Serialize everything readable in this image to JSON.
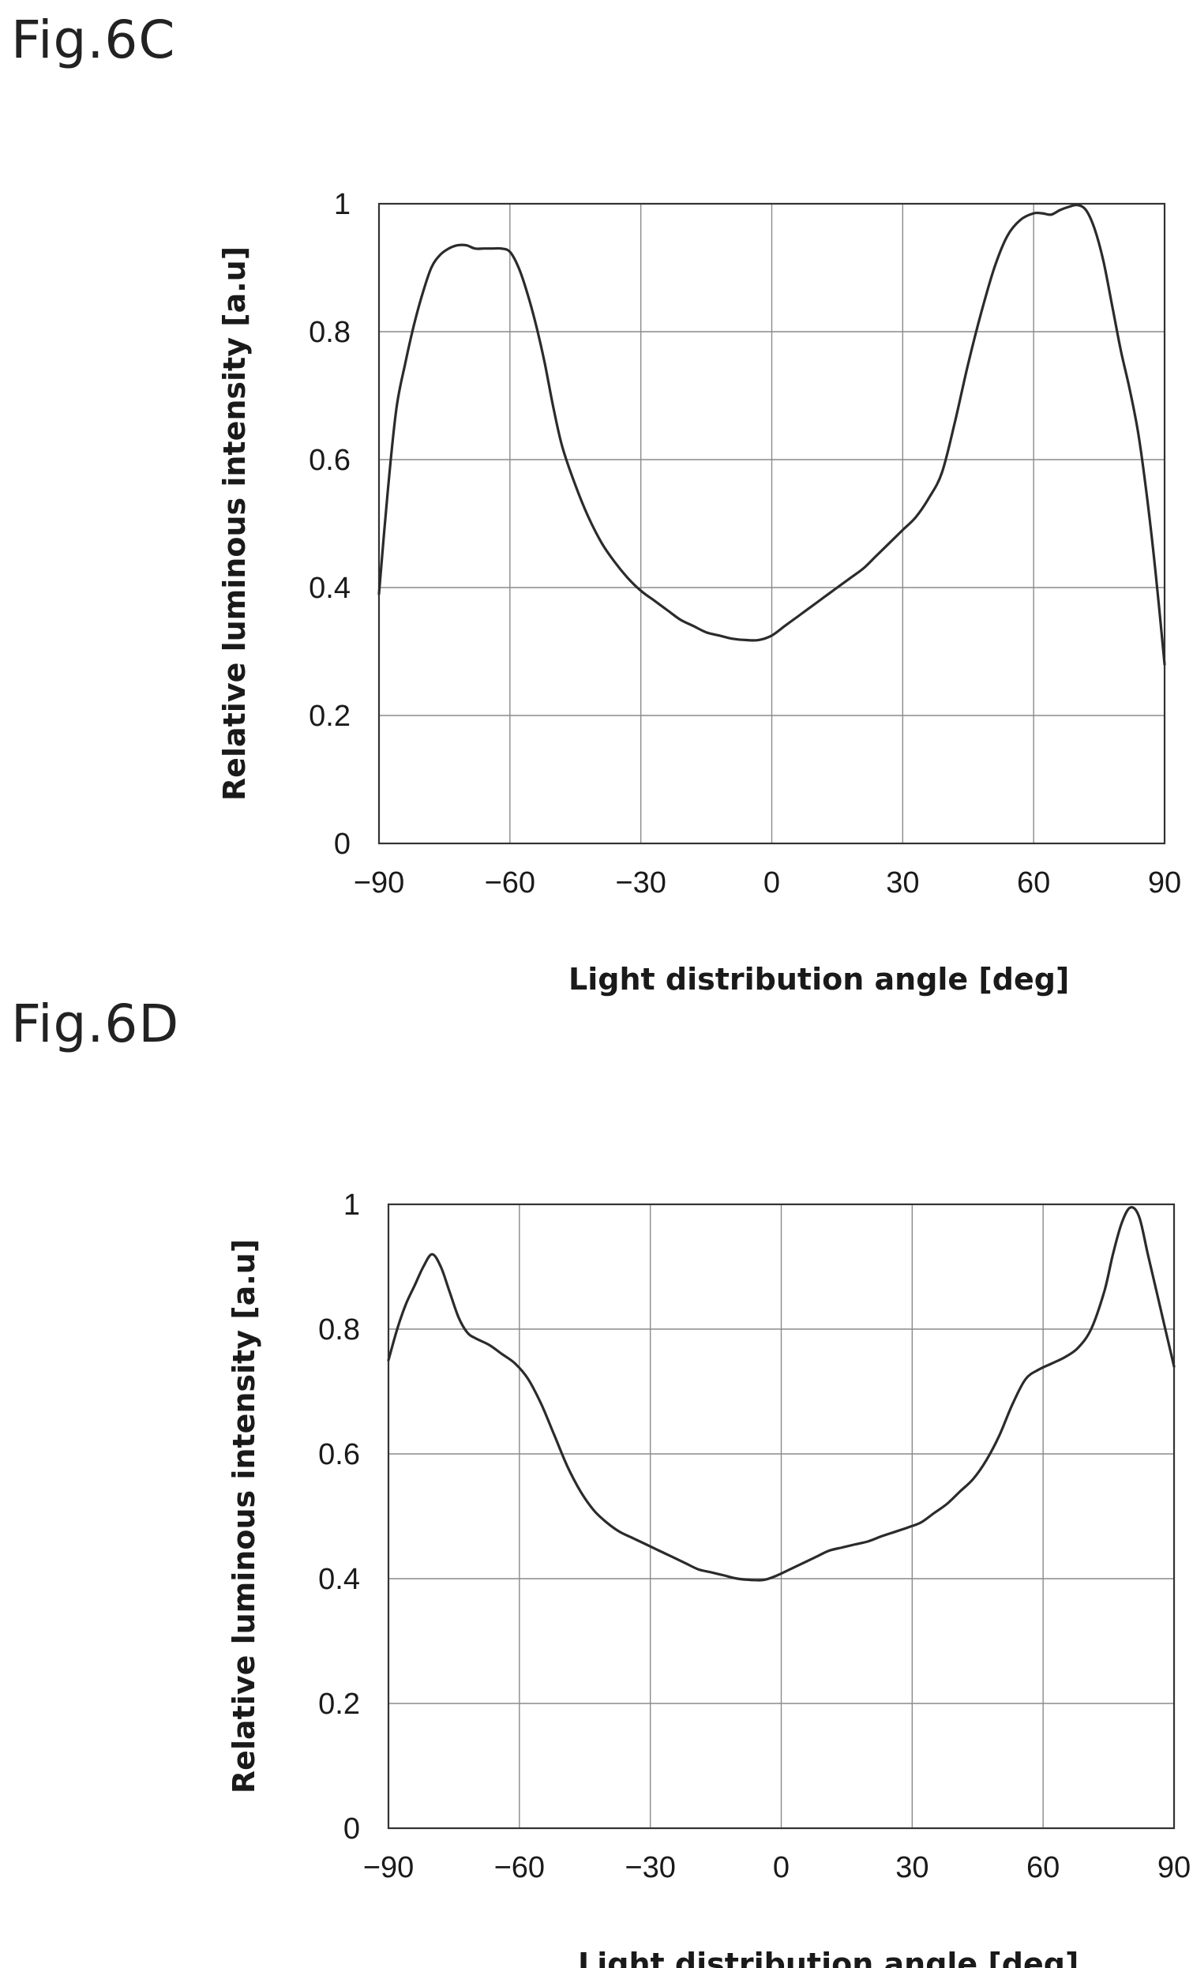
{
  "chart_data": [
    {
      "type": "line",
      "figure_label": "Fig.6C",
      "xlabel": "Light distribution angle [deg]",
      "ylabel": "Relative luminous intensity [a.u]",
      "xlim": [
        -90,
        90
      ],
      "ylim": [
        0,
        1
      ],
      "xticks": [
        -90,
        -60,
        -30,
        0,
        30,
        60,
        90
      ],
      "yticks": [
        0,
        0.2,
        0.4,
        0.6,
        0.8,
        1
      ],
      "grid": true,
      "series": [
        {
          "x": [
            -90,
            -88,
            -86,
            -84,
            -82,
            -80,
            -78,
            -76,
            -74,
            -72,
            -70,
            -68,
            -66,
            -64,
            -62,
            -60,
            -58,
            -56,
            -54,
            -52,
            -50,
            -48,
            -45,
            -42,
            -39,
            -36,
            -33,
            -30,
            -27,
            -24,
            -21,
            -18,
            -15,
            -12,
            -9,
            -6,
            -3,
            0,
            3,
            6,
            9,
            12,
            15,
            18,
            21,
            24,
            27,
            30,
            33,
            36,
            39,
            42,
            45,
            48,
            51,
            54,
            57,
            60,
            62,
            64,
            66,
            68,
            70,
            72,
            74,
            76,
            78,
            80,
            82,
            84,
            86,
            88,
            90
          ],
          "y": [
            0.39,
            0.55,
            0.68,
            0.75,
            0.81,
            0.86,
            0.9,
            0.92,
            0.93,
            0.935,
            0.935,
            0.93,
            0.93,
            0.93,
            0.93,
            0.925,
            0.9,
            0.86,
            0.81,
            0.75,
            0.68,
            0.62,
            0.56,
            0.51,
            0.47,
            0.44,
            0.415,
            0.395,
            0.38,
            0.365,
            0.35,
            0.34,
            0.33,
            0.325,
            0.32,
            0.318,
            0.318,
            0.325,
            0.34,
            0.355,
            0.37,
            0.385,
            0.4,
            0.415,
            0.43,
            0.45,
            0.47,
            0.49,
            0.51,
            0.54,
            0.58,
            0.66,
            0.75,
            0.83,
            0.9,
            0.95,
            0.975,
            0.985,
            0.985,
            0.983,
            0.99,
            0.995,
            0.998,
            0.99,
            0.96,
            0.91,
            0.84,
            0.77,
            0.71,
            0.64,
            0.54,
            0.42,
            0.28
          ]
        }
      ]
    },
    {
      "type": "line",
      "figure_label": "Fig.6D",
      "xlabel": "Light distribution angle [deg]",
      "ylabel": "Relative luminous intensity [a.u]",
      "xlim": [
        -90,
        90
      ],
      "ylim": [
        0,
        1
      ],
      "xticks": [
        -90,
        -60,
        -30,
        0,
        30,
        60,
        90
      ],
      "yticks": [
        0,
        0.2,
        0.4,
        0.6,
        0.8,
        1
      ],
      "grid": true,
      "series": [
        {
          "x": [
            -90,
            -88,
            -86,
            -84,
            -82,
            -80,
            -78,
            -76,
            -74,
            -72,
            -70,
            -67,
            -64,
            -61,
            -58,
            -55,
            -52,
            -49,
            -46,
            -43,
            -40,
            -37,
            -34,
            -31,
            -28,
            -25,
            -22,
            -19,
            -16,
            -13,
            -10,
            -7,
            -4,
            -1,
            2,
            5,
            8,
            11,
            14,
            17,
            20,
            23,
            26,
            29,
            32,
            35,
            38,
            41,
            44,
            47,
            50,
            53,
            56,
            59,
            62,
            65,
            68,
            71,
            74,
            76,
            78,
            80,
            82,
            84,
            86,
            88,
            90
          ],
          "y": [
            0.75,
            0.8,
            0.84,
            0.87,
            0.9,
            0.92,
            0.9,
            0.86,
            0.82,
            0.795,
            0.785,
            0.775,
            0.76,
            0.745,
            0.72,
            0.68,
            0.63,
            0.58,
            0.54,
            0.51,
            0.49,
            0.475,
            0.465,
            0.455,
            0.445,
            0.435,
            0.425,
            0.415,
            0.41,
            0.405,
            0.4,
            0.398,
            0.398,
            0.405,
            0.415,
            0.425,
            0.435,
            0.445,
            0.45,
            0.455,
            0.46,
            0.468,
            0.475,
            0.482,
            0.49,
            0.505,
            0.52,
            0.54,
            0.56,
            0.59,
            0.63,
            0.68,
            0.72,
            0.735,
            0.745,
            0.755,
            0.77,
            0.8,
            0.86,
            0.92,
            0.97,
            0.995,
            0.98,
            0.92,
            0.86,
            0.8,
            0.74
          ]
        }
      ]
    }
  ]
}
